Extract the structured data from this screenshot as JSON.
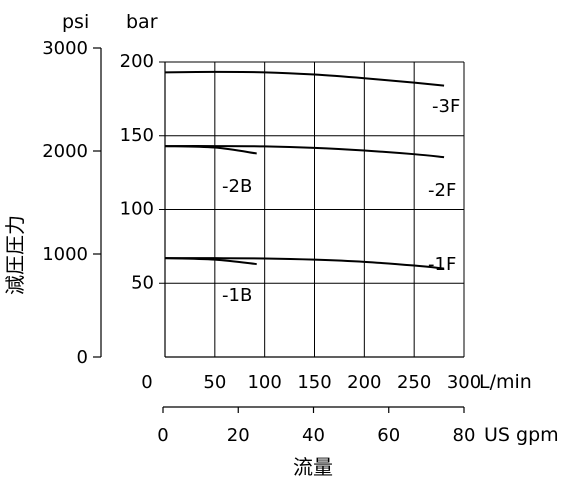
{
  "chart_data": {
    "type": "line",
    "title": "",
    "xlabel": "流量",
    "ylabel": "減圧圧力",
    "x_unit_primary": "L/min",
    "x_unit_secondary": "US gpm",
    "y_unit_left": "psi",
    "y_unit_right": "bar",
    "xlim": [
      0,
      300
    ],
    "ylim_bar": [
      0,
      200
    ],
    "ylim_psi": [
      0,
      3000
    ],
    "grid": true,
    "x_ticks_lpm": [
      "0",
      "50",
      "100",
      "150",
      "200",
      "250",
      "300"
    ],
    "x_ticks_gpm": [
      "0",
      "20",
      "40",
      "60",
      "80"
    ],
    "y_ticks_psi": [
      "0",
      "1000",
      "2000",
      "3000"
    ],
    "y_ticks_bar": [
      "50",
      "100",
      "150",
      "200"
    ],
    "series": [
      {
        "name": "-3F",
        "x": [
          0,
          50,
          100,
          150,
          200,
          250,
          280
        ],
        "y": [
          193,
          193.3,
          193,
          191.5,
          189,
          186,
          184
        ]
      },
      {
        "name": "-2F",
        "x": [
          0,
          50,
          100,
          150,
          200,
          250,
          280
        ],
        "y": [
          143,
          143,
          142.8,
          141.8,
          140,
          137.5,
          135.5
        ]
      },
      {
        "name": "-2B",
        "x": [
          0,
          50,
          92
        ],
        "y": [
          143,
          142,
          138
        ]
      },
      {
        "name": "-1F",
        "x": [
          0,
          50,
          100,
          150,
          200,
          250,
          280
        ],
        "y": [
          67,
          67,
          66.8,
          66,
          64.5,
          62,
          60
        ]
      },
      {
        "name": "-1B",
        "x": [
          0,
          50,
          92
        ],
        "y": [
          67,
          66,
          63
        ]
      }
    ]
  }
}
